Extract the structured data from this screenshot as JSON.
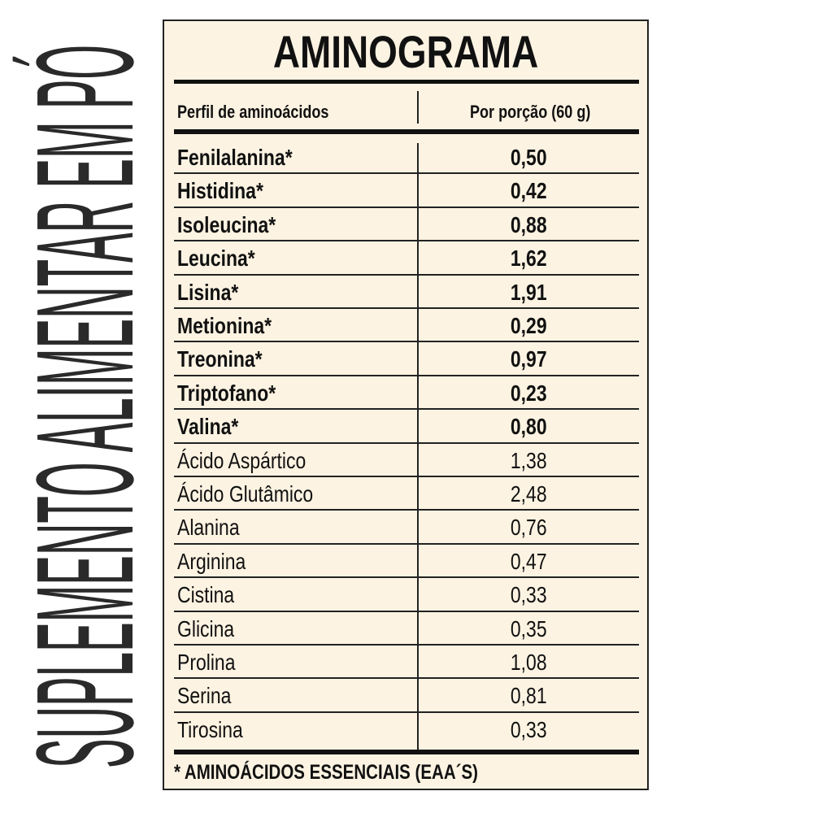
{
  "side_text": "SUPLEMENTO ALIMENTAR EM PÓ",
  "title": "AMINOGRAMA",
  "headers": {
    "name": "Perfil de aminoácidos",
    "value": "Por porção (60 g)"
  },
  "rows": [
    {
      "name": "Fenilalanina*",
      "value": "0,50",
      "essential": true
    },
    {
      "name": "Histidina*",
      "value": "0,42",
      "essential": true
    },
    {
      "name": "Isoleucina*",
      "value": "0,88",
      "essential": true
    },
    {
      "name": "Leucina*",
      "value": "1,62",
      "essential": true
    },
    {
      "name": "Lisina*",
      "value": "1,91",
      "essential": true
    },
    {
      "name": "Metionina*",
      "value": "0,29",
      "essential": true
    },
    {
      "name": "Treonina*",
      "value": "0,97",
      "essential": true
    },
    {
      "name": "Triptofano*",
      "value": "0,23",
      "essential": true
    },
    {
      "name": "Valina*",
      "value": "0,80",
      "essential": true
    },
    {
      "name": "Ácido Aspártico",
      "value": "1,38",
      "essential": false
    },
    {
      "name": "Ácido Glutâmico",
      "value": "2,48",
      "essential": false
    },
    {
      "name": "Alanina",
      "value": "0,76",
      "essential": false
    },
    {
      "name": "Arginina",
      "value": "0,47",
      "essential": false
    },
    {
      "name": "Cistina",
      "value": "0,33",
      "essential": false
    },
    {
      "name": "Glicina",
      "value": "0,35",
      "essential": false
    },
    {
      "name": "Prolina",
      "value": "1,08",
      "essential": false
    },
    {
      "name": "Serina",
      "value": "0,81",
      "essential": false
    },
    {
      "name": "Tirosina",
      "value": "0,33",
      "essential": false
    }
  ],
  "footnote": "* AMINOÁCIDOS ESSENCIAIS (EAA´S)",
  "colors": {
    "background": "#fdf3e2",
    "text": "#111111"
  }
}
